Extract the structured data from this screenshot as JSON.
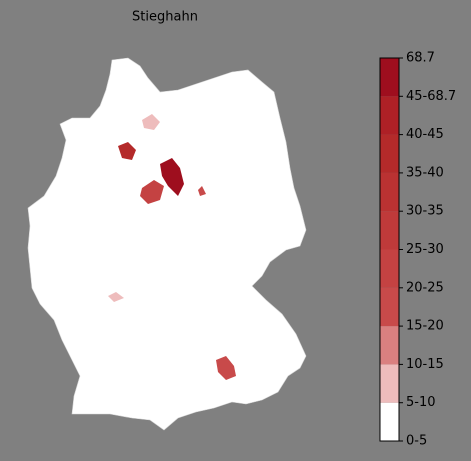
{
  "title": "Stieghahn",
  "legend": {
    "labels": [
      "0-5",
      "5-10",
      "10-15",
      "15-20",
      "20-25",
      "25-30",
      "30-35",
      "35-40",
      "40-45",
      "45-68.7",
      "68.7"
    ],
    "colors": [
      "#ffffff",
      "#eebcbc",
      "#da8080",
      "#c84a4a",
      "#c44242",
      "#bf3a3a",
      "#ba3232",
      "#b42a2a",
      "#ae2026",
      "#9e0e1e"
    ]
  }
}
